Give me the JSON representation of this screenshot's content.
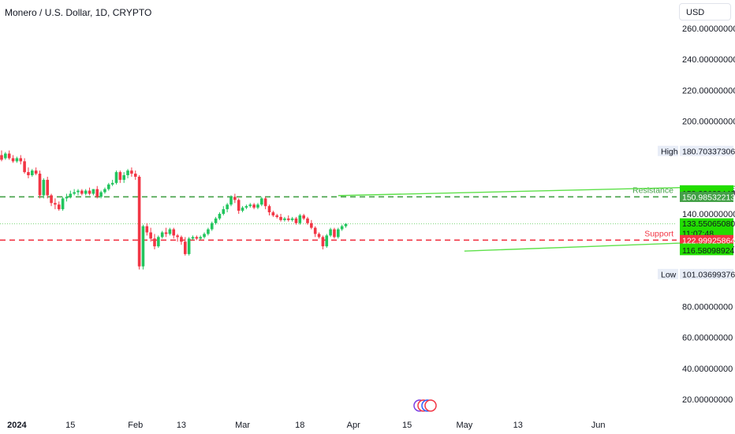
{
  "header": {
    "title": "Monero / U.S. Dollar, 1D, CRYPTO",
    "currency": "USD"
  },
  "colors": {
    "up": "#22c55e",
    "down": "#f23645",
    "resistance": "#43a047",
    "support": "#f23645",
    "trend": "#5ee14a",
    "green_label": "#22dd00",
    "red_label": "#f23645",
    "gray_label": "#e8edf7"
  },
  "chart_data": {
    "type": "candlestick",
    "title": "Monero / U.S. Dollar, 1D, CRYPTO",
    "ylim": [
      18,
      262
    ],
    "y_ticks": [
      {
        "value": 260,
        "label": "260.00000000"
      },
      {
        "value": 240,
        "label": "240.00000000"
      },
      {
        "value": 220,
        "label": "220.00000000"
      },
      {
        "value": 200,
        "label": "200.00000000"
      },
      {
        "value": 140,
        "label": "140.00000000"
      },
      {
        "value": 80,
        "label": "80.00000000"
      },
      {
        "value": 60,
        "label": "60.00000000"
      },
      {
        "value": 40,
        "label": "40.00000000"
      },
      {
        "value": 20,
        "label": "20.00000000"
      }
    ],
    "x_ticks": [
      {
        "idx": 4,
        "label": "2024",
        "bold": true
      },
      {
        "idx": 18,
        "label": "15"
      },
      {
        "idx": 35,
        "label": "Feb"
      },
      {
        "idx": 47,
        "label": "13"
      },
      {
        "idx": 63,
        "label": "Mar"
      },
      {
        "idx": 78,
        "label": "18"
      },
      {
        "idx": 92,
        "label": "Apr"
      },
      {
        "idx": 106,
        "label": "15"
      },
      {
        "idx": 121,
        "label": "May"
      },
      {
        "idx": 135,
        "label": "13"
      },
      {
        "idx": 156,
        "label": "Jun"
      }
    ],
    "candles": [
      {
        "o": 178,
        "h": 181,
        "c": 175,
        "l": 174
      },
      {
        "o": 176,
        "h": 180,
        "c": 179,
        "l": 175
      },
      {
        "o": 179,
        "h": 181,
        "c": 176,
        "l": 175
      },
      {
        "o": 176,
        "h": 178,
        "c": 174,
        "l": 173
      },
      {
        "o": 174,
        "h": 177,
        "c": 176,
        "l": 173
      },
      {
        "o": 176,
        "h": 178,
        "c": 174,
        "l": 172
      },
      {
        "o": 174,
        "h": 176,
        "c": 167,
        "l": 166
      },
      {
        "o": 167,
        "h": 170,
        "c": 165,
        "l": 163
      },
      {
        "o": 165,
        "h": 169,
        "c": 168,
        "l": 164
      },
      {
        "o": 168,
        "h": 170,
        "c": 166,
        "l": 165
      },
      {
        "o": 166,
        "h": 168,
        "c": 152,
        "l": 150
      },
      {
        "o": 152,
        "h": 163,
        "c": 162,
        "l": 150
      },
      {
        "o": 162,
        "h": 164,
        "c": 152,
        "l": 150
      },
      {
        "o": 152,
        "h": 153,
        "c": 147,
        "l": 145
      },
      {
        "o": 147,
        "h": 150,
        "c": 146,
        "l": 143
      },
      {
        "o": 146,
        "h": 148,
        "c": 143,
        "l": 142
      },
      {
        "o": 143,
        "h": 151,
        "c": 150,
        "l": 142
      },
      {
        "o": 150,
        "h": 153,
        "c": 151,
        "l": 148
      },
      {
        "o": 151,
        "h": 155,
        "c": 153,
        "l": 150
      },
      {
        "o": 153,
        "h": 156,
        "c": 154,
        "l": 152
      },
      {
        "o": 154,
        "h": 156,
        "c": 155,
        "l": 152
      },
      {
        "o": 155,
        "h": 156,
        "c": 153,
        "l": 152
      },
      {
        "o": 153,
        "h": 156,
        "c": 155,
        "l": 152
      },
      {
        "o": 155,
        "h": 157,
        "c": 153,
        "l": 152
      },
      {
        "o": 153,
        "h": 156,
        "c": 156,
        "l": 152
      },
      {
        "o": 156,
        "h": 158,
        "c": 151,
        "l": 150
      },
      {
        "o": 151,
        "h": 155,
        "c": 154,
        "l": 150
      },
      {
        "o": 154,
        "h": 157,
        "c": 156,
        "l": 153
      },
      {
        "o": 156,
        "h": 160,
        "c": 159,
        "l": 155
      },
      {
        "o": 159,
        "h": 162,
        "c": 160,
        "l": 158
      },
      {
        "o": 160,
        "h": 168,
        "c": 167,
        "l": 159
      },
      {
        "o": 167,
        "h": 168,
        "c": 162,
        "l": 160
      },
      {
        "o": 162,
        "h": 167,
        "c": 165,
        "l": 160
      },
      {
        "o": 165,
        "h": 169,
        "c": 168,
        "l": 163
      },
      {
        "o": 168,
        "h": 170,
        "c": 166,
        "l": 164
      },
      {
        "o": 166,
        "h": 168,
        "c": 164,
        "l": 162
      },
      {
        "o": 164,
        "h": 165,
        "c": 106,
        "l": 104
      },
      {
        "o": 106,
        "h": 133,
        "c": 132,
        "l": 104
      },
      {
        "o": 132,
        "h": 134,
        "c": 128,
        "l": 126
      },
      {
        "o": 128,
        "h": 131,
        "c": 124,
        "l": 122
      },
      {
        "o": 124,
        "h": 127,
        "c": 119,
        "l": 117
      },
      {
        "o": 119,
        "h": 126,
        "c": 125,
        "l": 118
      },
      {
        "o": 125,
        "h": 129,
        "c": 128,
        "l": 124
      },
      {
        "o": 128,
        "h": 131,
        "c": 127,
        "l": 125
      },
      {
        "o": 127,
        "h": 131,
        "c": 130,
        "l": 126
      },
      {
        "o": 130,
        "h": 131,
        "c": 126,
        "l": 124
      },
      {
        "o": 126,
        "h": 127,
        "c": 125,
        "l": 122
      },
      {
        "o": 125,
        "h": 126,
        "c": 122,
        "l": 120
      },
      {
        "o": 122,
        "h": 125,
        "c": 114,
        "l": 113
      },
      {
        "o": 114,
        "h": 125,
        "c": 124,
        "l": 113
      },
      {
        "o": 124,
        "h": 126,
        "c": 125,
        "l": 123
      },
      {
        "o": 125,
        "h": 126,
        "c": 124,
        "l": 123
      },
      {
        "o": 124,
        "h": 126,
        "c": 125,
        "l": 123
      },
      {
        "o": 125,
        "h": 128,
        "c": 127,
        "l": 124
      },
      {
        "o": 127,
        "h": 131,
        "c": 130,
        "l": 126
      },
      {
        "o": 130,
        "h": 135,
        "c": 134,
        "l": 129
      },
      {
        "o": 134,
        "h": 138,
        "c": 137,
        "l": 133
      },
      {
        "o": 137,
        "h": 141,
        "c": 140,
        "l": 136
      },
      {
        "o": 140,
        "h": 145,
        "c": 143,
        "l": 139
      },
      {
        "o": 143,
        "h": 147,
        "c": 146,
        "l": 141
      },
      {
        "o": 146,
        "h": 152,
        "c": 151,
        "l": 145
      },
      {
        "o": 151,
        "h": 153,
        "c": 149,
        "l": 147
      },
      {
        "o": 149,
        "h": 150,
        "c": 142,
        "l": 140
      },
      {
        "o": 142,
        "h": 145,
        "c": 144,
        "l": 141
      },
      {
        "o": 144,
        "h": 146,
        "c": 145,
        "l": 143
      },
      {
        "o": 145,
        "h": 147,
        "c": 146,
        "l": 144
      },
      {
        "o": 146,
        "h": 147,
        "c": 144,
        "l": 143
      },
      {
        "o": 144,
        "h": 147,
        "c": 146,
        "l": 143
      },
      {
        "o": 146,
        "h": 151,
        "c": 150,
        "l": 145
      },
      {
        "o": 150,
        "h": 151,
        "c": 145,
        "l": 143
      },
      {
        "o": 145,
        "h": 146,
        "c": 141,
        "l": 139
      },
      {
        "o": 141,
        "h": 142,
        "c": 139,
        "l": 138
      },
      {
        "o": 139,
        "h": 140,
        "c": 138,
        "l": 137
      },
      {
        "o": 138,
        "h": 140,
        "c": 136,
        "l": 135
      },
      {
        "o": 136,
        "h": 138,
        "c": 137,
        "l": 135
      },
      {
        "o": 137,
        "h": 139,
        "c": 136,
        "l": 135
      },
      {
        "o": 136,
        "h": 138,
        "c": 137,
        "l": 135
      },
      {
        "o": 137,
        "h": 138,
        "c": 134,
        "l": 133
      },
      {
        "o": 134,
        "h": 140,
        "c": 139,
        "l": 133
      },
      {
        "o": 139,
        "h": 140,
        "c": 137,
        "l": 136
      },
      {
        "o": 137,
        "h": 138,
        "c": 134,
        "l": 133
      },
      {
        "o": 134,
        "h": 136,
        "c": 131,
        "l": 130
      },
      {
        "o": 131,
        "h": 132,
        "c": 127,
        "l": 125
      },
      {
        "o": 127,
        "h": 128,
        "c": 125,
        "l": 124
      },
      {
        "o": 125,
        "h": 126,
        "c": 119,
        "l": 117
      },
      {
        "o": 119,
        "h": 127,
        "c": 126,
        "l": 118
      },
      {
        "o": 126,
        "h": 131,
        "c": 130,
        "l": 125
      },
      {
        "o": 130,
        "h": 131,
        "c": 125,
        "l": 124
      },
      {
        "o": 125,
        "h": 131,
        "c": 130,
        "l": 124
      },
      {
        "o": 130,
        "h": 133,
        "c": 132,
        "l": 129
      },
      {
        "o": 132,
        "h": 134,
        "c": 133.55,
        "l": 131
      }
    ],
    "lines": [
      {
        "name": "resistance",
        "value": 150.98532213,
        "label": "Resistance",
        "style": "dashed"
      },
      {
        "name": "support",
        "value": 122.99925864,
        "label": "Support",
        "style": "dashed"
      },
      {
        "name": "last-price",
        "value": 133.5506508,
        "style": "dotted"
      }
    ],
    "trendlines": [
      {
        "name": "upper-trendline",
        "x1": 88,
        "y1": 151.8,
        "x2": 216,
        "y2": 159.2
      },
      {
        "name": "lower-trendline",
        "x1": 121,
        "y1": 115.9,
        "x2": 216,
        "y2": 124.6
      }
    ],
    "price_labels": [
      {
        "name": "high-label",
        "title": "High",
        "value": 180.70337306,
        "text": "180.70337306",
        "kind": "gray"
      },
      {
        "name": "trend-upper-label-1",
        "value": 155.17399665,
        "text": "155.17399665",
        "kind": "green"
      },
      {
        "name": "trend-upper-label-2",
        "value": 153.3362344,
        "text": "153.33623440",
        "kind": "green"
      },
      {
        "name": "resistance-price-label",
        "value": 150.98532213,
        "text": "150.98532213",
        "kind": "darkgreen"
      },
      {
        "name": "last-price-label",
        "value": 133.5506508,
        "text": "133.55065080",
        "sub": "11:07:48",
        "kind": "green"
      },
      {
        "name": "support-price-label",
        "value": 122.99925864,
        "text": "122.99925864",
        "kind": "red"
      },
      {
        "name": "trend-lower-label-1",
        "value": 117.49987037,
        "text": "117.49987037",
        "kind": "green"
      },
      {
        "name": "trend-lower-label-2",
        "value": 116.58098924,
        "text": "116.58098924",
        "kind": "green"
      },
      {
        "name": "low-label",
        "title": "Low",
        "value": 101.03699376,
        "text": "101.03699376",
        "kind": "gray"
      }
    ]
  }
}
